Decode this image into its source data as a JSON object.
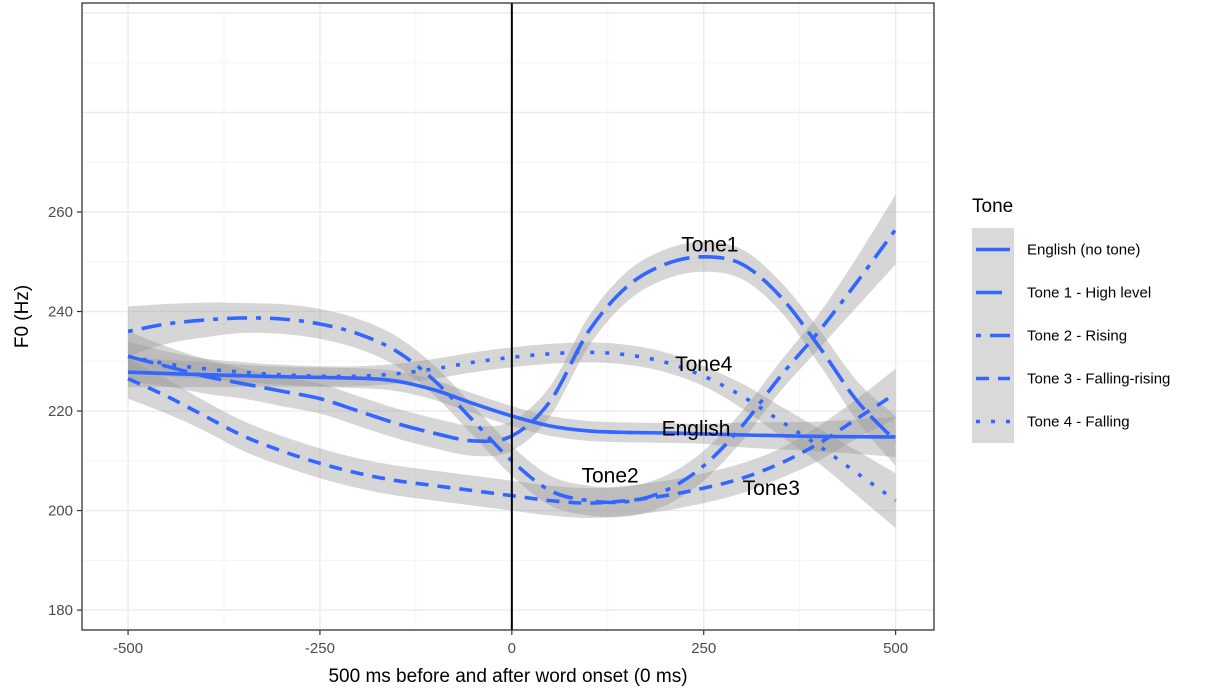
{
  "chart_data": {
    "type": "line",
    "xlabel": "500 ms before and after word onset (0 ms)",
    "ylabel": "F0 (Hz)",
    "xlim": [
      -560,
      550
    ],
    "ylim": [
      176,
      302
    ],
    "xticks": [
      -500,
      -250,
      0,
      250,
      500
    ],
    "xtick_labels": [
      "-500",
      "-250",
      "0",
      "250",
      "500"
    ],
    "yticks": [
      180,
      200,
      220,
      240,
      260
    ],
    "ytick_labels": [
      "180",
      "200",
      "220",
      "240",
      "260"
    ],
    "grid": true,
    "vline_x": 0,
    "legend": {
      "title": "Tone",
      "placement": "right",
      "entries": [
        "English (no tone)",
        "Tone 1 - High level",
        "Tone 2 - Rising",
        "Tone 3 - Falling-rising",
        "Tone 4 - Falling"
      ]
    },
    "series": [
      {
        "name": "English (no tone)",
        "linestyle": "solid",
        "x": [
          -500,
          -400,
          -300,
          -200,
          -150,
          -100,
          -50,
          0,
          50,
          100,
          150,
          200,
          250,
          300,
          400,
          500
        ],
        "y": [
          227.8,
          227.3,
          226.9,
          226.6,
          226,
          224.2,
          221.5,
          219,
          217,
          216,
          215.7,
          215.6,
          215.4,
          215.2,
          214.9,
          214.8
        ],
        "band": [
          3,
          2.5,
          2,
          2,
          2,
          2,
          2,
          2,
          2,
          2,
          2,
          2,
          2,
          2.5,
          3,
          4
        ]
      },
      {
        "name": "Tone 1 - High level",
        "linestyle": "longdash",
        "x": [
          -500,
          -450,
          -400,
          -350,
          -300,
          -250,
          -200,
          -150,
          -100,
          -50,
          0,
          50,
          100,
          150,
          200,
          250,
          300,
          350,
          400,
          450,
          500
        ],
        "y": [
          231,
          229,
          227,
          225.5,
          224,
          222.5,
          220,
          217.5,
          215.5,
          214,
          215,
          222,
          236,
          245,
          249.5,
          251,
          249.5,
          243,
          233,
          222,
          214
        ],
        "band": [
          5,
          4,
          3.5,
          3,
          3,
          3,
          3,
          3,
          3,
          3,
          3,
          3,
          3,
          3,
          3,
          3,
          3,
          3,
          3.5,
          4,
          5
        ]
      },
      {
        "name": "Tone 2 - Rising",
        "linestyle": "dotdash",
        "x": [
          -500,
          -450,
          -400,
          -350,
          -300,
          -250,
          -200,
          -150,
          -100,
          -50,
          0,
          50,
          100,
          150,
          200,
          250,
          300,
          350,
          400,
          450,
          500
        ],
        "y": [
          236,
          237.5,
          238.3,
          238.7,
          238.5,
          237.5,
          235.5,
          232,
          226,
          218,
          210,
          204,
          202,
          201.8,
          204,
          209,
          217,
          227,
          236,
          246,
          256.5
        ],
        "band": [
          5,
          4,
          3.5,
          3,
          3,
          3,
          3,
          3,
          3,
          3,
          3,
          3,
          3,
          3,
          3,
          3,
          3,
          3,
          3.5,
          5,
          7
        ]
      },
      {
        "name": "Tone 3 - Falling-rising",
        "linestyle": "dashed",
        "x": [
          -500,
          -450,
          -400,
          -350,
          -300,
          -250,
          -200,
          -150,
          -100,
          -50,
          0,
          50,
          100,
          150,
          200,
          250,
          300,
          350,
          400,
          450,
          500
        ],
        "y": [
          226.5,
          223,
          219,
          215,
          212,
          209.5,
          207.5,
          206,
          205,
          204,
          203,
          202,
          201.5,
          202,
          203,
          204.5,
          206.5,
          209.5,
          213.5,
          218.5,
          223.5
        ],
        "band": [
          4,
          3.5,
          3,
          3,
          3,
          3,
          3,
          3,
          3,
          3,
          3,
          3,
          3,
          3,
          3,
          3,
          3,
          3,
          3.5,
          4,
          5
        ]
      },
      {
        "name": "Tone 4 - Falling",
        "linestyle": "dotted",
        "x": [
          -500,
          -450,
          -400,
          -350,
          -300,
          -250,
          -200,
          -150,
          -100,
          -50,
          0,
          50,
          100,
          150,
          200,
          250,
          300,
          350,
          400,
          450,
          500
        ],
        "y": [
          231,
          229.5,
          228.5,
          227.8,
          227.3,
          227,
          227,
          227.5,
          228.5,
          229.8,
          230.8,
          231.5,
          231.8,
          231.3,
          229.8,
          227,
          223,
          218,
          213,
          207.5,
          202
        ],
        "band": [
          3,
          2.5,
          2,
          2,
          2,
          2,
          2,
          2,
          2,
          2,
          2,
          2,
          2,
          2,
          2,
          2,
          2.5,
          3,
          3.5,
          4.5,
          5.5
        ]
      }
    ],
    "annotations": [
      {
        "text": "Tone1",
        "x": 258,
        "y": 253.5
      },
      {
        "text": "Tone4",
        "x": 250,
        "y": 229.5
      },
      {
        "text": "English",
        "x": 240,
        "y": 216.5
      },
      {
        "text": "Tone2",
        "x": 128,
        "y": 207
      },
      {
        "text": "Tone3",
        "x": 338,
        "y": 204.5
      }
    ],
    "colors": {
      "line": "#3366ff",
      "band": "#999999",
      "grid_major": "#ebebeb",
      "grid_minor": "#f5f5f5",
      "panel_border": "#333333",
      "legend_key_bg": "#d9d9d9",
      "vline": "#000000"
    }
  }
}
